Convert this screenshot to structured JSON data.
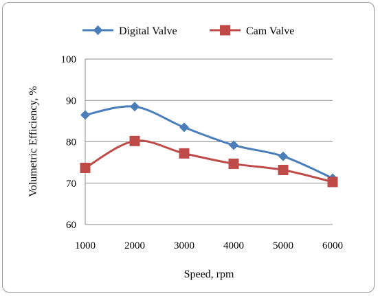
{
  "chart_data": {
    "type": "line",
    "title": "",
    "xlabel": "Speed, rpm",
    "ylabel": "Volumetric Efficiency, %",
    "x": [
      1000,
      2000,
      3000,
      4000,
      5000,
      6000
    ],
    "xlim": [
      1000,
      6000
    ],
    "ylim": [
      60,
      100
    ],
    "x_ticks": [
      "1000",
      "2000",
      "3000",
      "4000",
      "5000",
      "6000"
    ],
    "y_ticks": [
      "60",
      "70",
      "80",
      "90",
      "100"
    ],
    "grid": "horizontal",
    "legend_position": "top",
    "smoothed": true,
    "series": [
      {
        "name": "Digital Valve",
        "values": [
          86.5,
          88.5,
          83.5,
          79.2,
          76.5,
          71.2
        ],
        "color": "#4a7ebb",
        "marker": "diamond"
      },
      {
        "name": "Cam Valve",
        "values": [
          73.7,
          80.2,
          77.2,
          74.7,
          73.2,
          70.3
        ],
        "color": "#be4b48",
        "marker": "square"
      }
    ]
  }
}
